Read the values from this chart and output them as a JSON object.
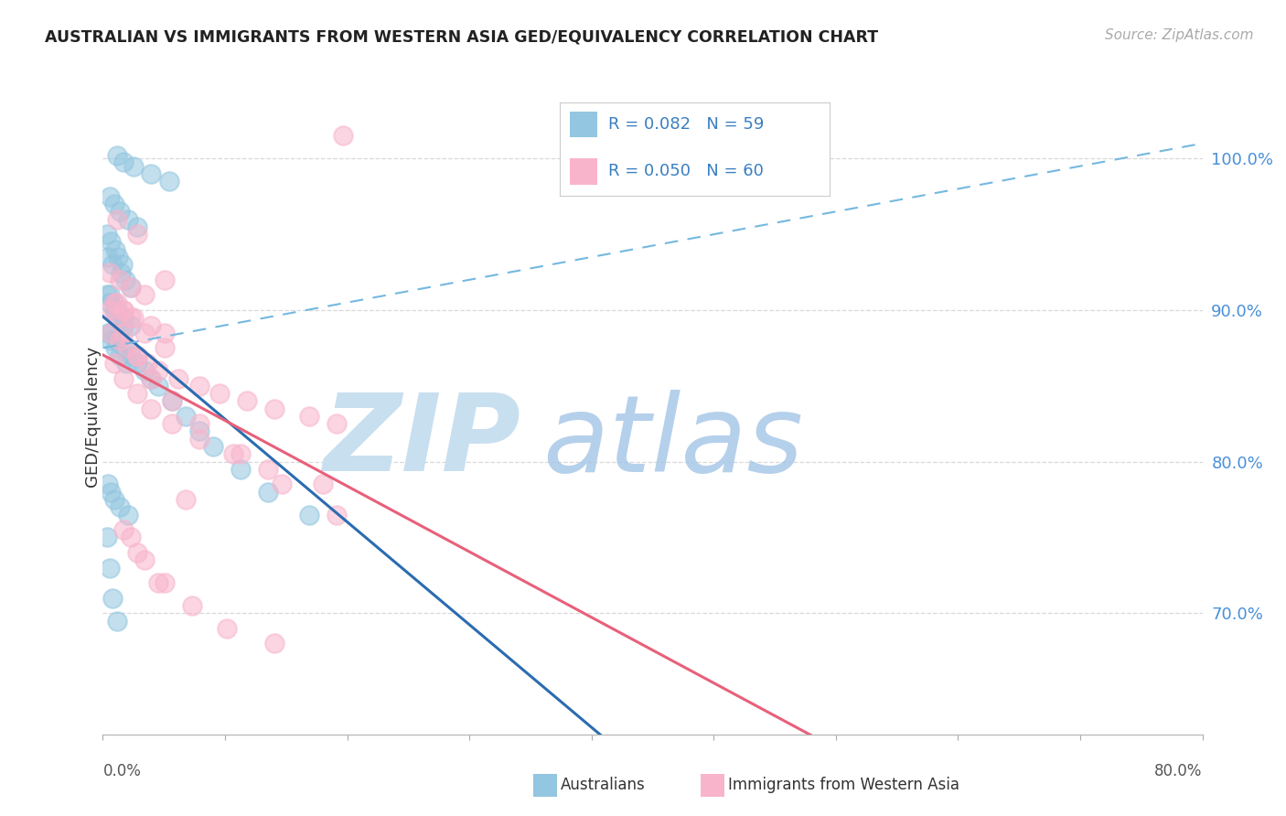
{
  "title": "AUSTRALIAN VS IMMIGRANTS FROM WESTERN ASIA GED/EQUIVALENCY CORRELATION CHART",
  "source": "Source: ZipAtlas.com",
  "ylabel": "GED/Equivalency",
  "right_yticks": [
    70.0,
    80.0,
    90.0,
    100.0
  ],
  "xmin": 0.0,
  "xmax": 80.0,
  "ymin": 62.0,
  "ymax": 104.0,
  "legend_r1": "R = 0.082",
  "legend_n1": "N = 59",
  "legend_r2": "R = 0.050",
  "legend_n2": "N = 60",
  "blue_color": "#93c6e0",
  "pink_color": "#f8b4cb",
  "trend_blue_solid": "#2b6cb0",
  "trend_blue_dashed": "#74b8e0",
  "trend_pink_solid": "#e8607a",
  "dash_x0": 0.0,
  "dash_y0": 87.5,
  "dash_x1": 80.0,
  "dash_y1": 101.0,
  "blue_x": [
    1.0,
    1.5,
    2.2,
    3.5,
    4.8,
    0.5,
    0.8,
    1.2,
    1.8,
    2.5,
    0.3,
    0.6,
    0.9,
    1.1,
    1.4,
    0.4,
    0.7,
    1.3,
    1.6,
    2.0,
    0.5,
    0.8,
    1.0,
    1.5,
    2.0,
    0.3,
    0.5,
    0.8,
    1.0,
    1.5,
    0.4,
    0.6,
    0.9,
    1.2,
    1.7,
    0.6,
    1.0,
    1.5,
    2.0,
    2.5,
    3.0,
    3.5,
    4.0,
    5.0,
    6.0,
    7.0,
    8.0,
    10.0,
    12.0,
    15.0,
    0.3,
    0.5,
    0.7,
    1.0,
    0.4,
    0.6,
    0.8,
    1.2,
    1.8
  ],
  "blue_y": [
    100.2,
    99.8,
    99.5,
    99.0,
    98.5,
    97.5,
    97.0,
    96.5,
    96.0,
    95.5,
    95.0,
    94.5,
    94.0,
    93.5,
    93.0,
    93.5,
    93.0,
    92.5,
    92.0,
    91.5,
    91.0,
    90.5,
    90.0,
    89.5,
    89.0,
    91.0,
    90.5,
    90.0,
    89.5,
    89.0,
    88.5,
    88.0,
    87.5,
    87.0,
    86.5,
    88.5,
    88.0,
    87.5,
    87.0,
    86.5,
    86.0,
    85.5,
    85.0,
    84.0,
    83.0,
    82.0,
    81.0,
    79.5,
    78.0,
    76.5,
    75.0,
    73.0,
    71.0,
    69.5,
    78.5,
    78.0,
    77.5,
    77.0,
    76.5
  ],
  "pink_x": [
    1.0,
    2.5,
    4.5,
    0.5,
    1.2,
    2.0,
    3.0,
    0.8,
    1.5,
    2.2,
    3.5,
    4.5,
    0.6,
    1.2,
    1.8,
    2.5,
    3.2,
    4.0,
    5.5,
    7.0,
    8.5,
    10.5,
    12.5,
    15.0,
    17.0,
    1.0,
    1.5,
    2.0,
    3.0,
    4.5,
    0.8,
    1.5,
    2.5,
    3.5,
    5.0,
    7.0,
    9.5,
    12.0,
    16.0,
    0.5,
    1.0,
    1.5,
    2.5,
    3.5,
    5.0,
    7.0,
    10.0,
    13.0,
    17.0,
    2.0,
    3.0,
    4.5,
    6.5,
    9.0,
    12.5,
    1.5,
    2.5,
    4.0,
    6.0,
    17.5
  ],
  "pink_y": [
    96.0,
    95.0,
    92.0,
    92.5,
    92.0,
    91.5,
    91.0,
    90.5,
    90.0,
    89.5,
    89.0,
    88.5,
    88.5,
    88.0,
    87.5,
    87.0,
    86.5,
    86.0,
    85.5,
    85.0,
    84.5,
    84.0,
    83.5,
    83.0,
    82.5,
    90.5,
    90.0,
    89.5,
    88.5,
    87.5,
    86.5,
    85.5,
    84.5,
    83.5,
    82.5,
    81.5,
    80.5,
    79.5,
    78.5,
    90.0,
    89.5,
    88.5,
    87.0,
    85.5,
    84.0,
    82.5,
    80.5,
    78.5,
    76.5,
    75.0,
    73.5,
    72.0,
    70.5,
    69.0,
    68.0,
    75.5,
    74.0,
    72.0,
    77.5,
    101.5
  ]
}
